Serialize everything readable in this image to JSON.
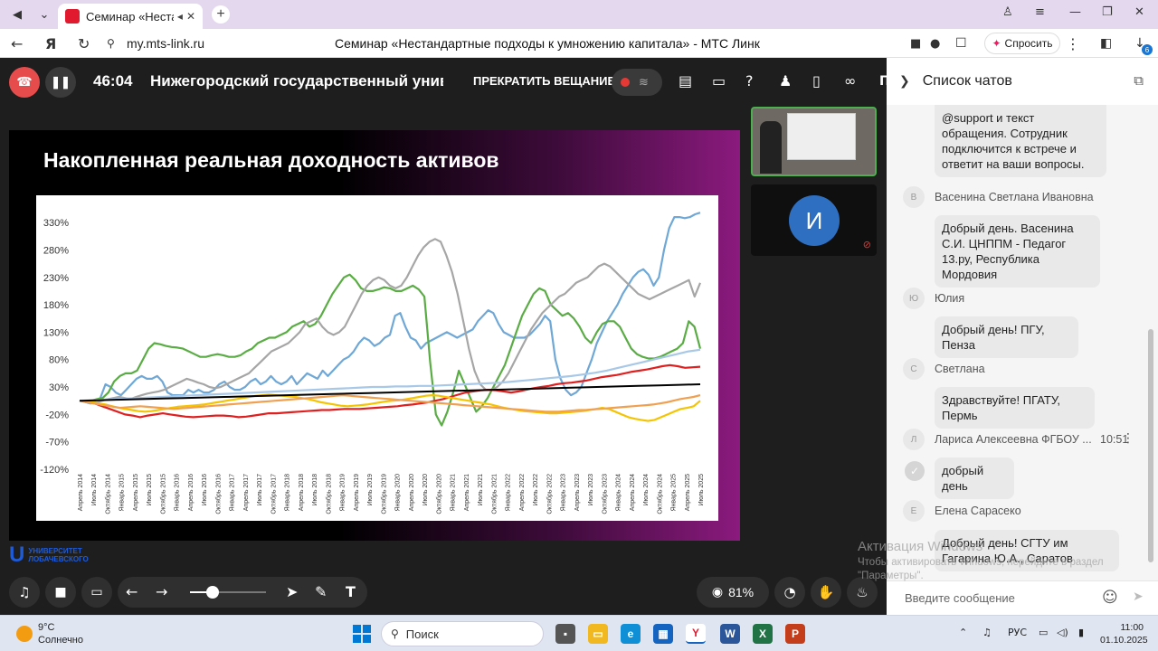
{
  "browser": {
    "tab_title": "Семинар «Нестанда",
    "address": "my.mts-link.ru",
    "page_title": "Семинар «Нестандартные подходы к умножению капитала» - МТС Линк",
    "ask_label": "Спросить",
    "extension_badge": "6"
  },
  "meeting": {
    "timer": "46:04",
    "org_name": "Нижегородский государственный униве",
    "stop_broadcast": "ПРЕКРАТИТЬ ВЕЩАНИЕ",
    "cut_label": "П",
    "participant_initial": "И",
    "views_percent": "81%"
  },
  "slide": {
    "title": "Накопленная реальная доходность активов",
    "logo_line1": "УНИВЕРСИТЕТ",
    "logo_line2": "ЛОБАЧЕВСКОГО"
  },
  "chart_data": {
    "type": "line",
    "title": "",
    "xlabel": "",
    "ylabel": "",
    "ylim": [
      -120,
      350
    ],
    "yticks": [
      330,
      280,
      230,
      180,
      130,
      80,
      30,
      -20,
      -70,
      -120
    ],
    "ytick_labels": [
      "330%",
      "280%",
      "230%",
      "180%",
      "130%",
      "80%",
      "30%",
      "-20%",
      "-70%",
      "-120%"
    ],
    "x_labels": [
      "Апрель 2014",
      "Июль 2014",
      "Октябрь 2014",
      "Январь 2015",
      "Апрель 2015",
      "Июль 2015",
      "Октябрь 2015",
      "Январь 2016",
      "Апрель 2016",
      "Июль 2016",
      "Октябрь 2016",
      "Январь 2017",
      "Апрель 2017",
      "Июль 2017",
      "Октябрь 2017",
      "Январь 2018",
      "Апрель 2018",
      "Июль 2018",
      "Октябрь 2018",
      "Январь 2019",
      "Апрель 2019",
      "Июль 2019",
      "Октябрь 2019",
      "Январь 2020",
      "Апрель 2020",
      "Июль 2020",
      "Октябрь 2020",
      "Январь 2021",
      "Апрель 2021",
      "Июль 2021",
      "Октябрь 2021",
      "Январь 2022",
      "Апрель 2022",
      "Июль 2022",
      "Октябрь 2022",
      "Январь 2023",
      "Апрель 2023",
      "Июль 2023",
      "Октябрь 2023",
      "Январь 2024",
      "Апрель 2024",
      "Июль 2024",
      "Октябрь 2024",
      "Январь 2025",
      "Апрель 2025",
      "Июль 2025"
    ],
    "grid": false,
    "legend": "none",
    "series": [
      {
        "color": "#6fa8d6",
        "values": [
          5,
          3,
          0,
          5,
          10,
          35,
          30,
          20,
          15,
          25,
          35,
          45,
          50,
          45,
          45,
          50,
          40,
          20,
          15,
          15,
          15,
          25,
          20,
          25,
          20,
          20,
          25,
          35,
          40,
          30,
          25,
          25,
          30,
          40,
          45,
          35,
          40,
          50,
          40,
          35,
          40,
          50,
          35,
          45,
          55,
          50,
          45,
          60,
          50,
          60,
          70,
          80,
          85,
          95,
          110,
          120,
          115,
          105,
          110,
          120,
          125,
          160,
          165,
          140,
          120,
          115,
          100,
          110,
          115,
          120,
          125,
          130,
          125,
          120,
          125,
          130,
          135,
          150,
          160,
          170,
          165,
          145,
          130,
          125,
          120,
          120,
          120,
          125,
          135,
          145,
          160,
          150,
          80,
          45,
          25,
          15,
          20,
          30,
          55,
          80,
          110,
          130,
          150,
          165,
          180,
          200,
          215,
          230,
          240,
          245,
          235,
          215,
          230,
          280,
          320,
          340,
          340,
          338,
          340,
          345,
          348
        ]
      },
      {
        "color": "#5aac44",
        "values": [
          5,
          5,
          5,
          8,
          10,
          20,
          40,
          50,
          55,
          55,
          60,
          80,
          100,
          110,
          108,
          105,
          103,
          102,
          100,
          95,
          90,
          85,
          85,
          88,
          90,
          88,
          85,
          85,
          88,
          95,
          100,
          110,
          115,
          120,
          120,
          125,
          130,
          140,
          145,
          150,
          140,
          145,
          160,
          180,
          200,
          215,
          230,
          235,
          225,
          210,
          205,
          205,
          208,
          212,
          210,
          205,
          205,
          210,
          215,
          208,
          195,
          75,
          -20,
          -40,
          -15,
          20,
          60,
          35,
          10,
          -15,
          -5,
          10,
          30,
          50,
          70,
          100,
          130,
          160,
          180,
          200,
          210,
          205,
          180,
          170,
          160,
          165,
          155,
          140,
          120,
          110,
          130,
          145,
          150,
          150,
          140,
          120,
          100,
          90,
          85,
          82,
          82,
          85,
          90,
          95,
          100,
          110,
          150,
          140,
          100
        ]
      },
      {
        "color": "#a6a6a6",
        "values": [
          5,
          3,
          0,
          2,
          5,
          8,
          10,
          12,
          10,
          8,
          12,
          15,
          18,
          20,
          22,
          25,
          30,
          35,
          40,
          45,
          42,
          38,
          35,
          30,
          28,
          30,
          35,
          40,
          45,
          50,
          55,
          65,
          75,
          85,
          95,
          100,
          105,
          110,
          120,
          130,
          145,
          150,
          155,
          140,
          130,
          125,
          130,
          140,
          160,
          180,
          200,
          215,
          225,
          230,
          225,
          215,
          210,
          215,
          230,
          250,
          270,
          285,
          295,
          300,
          295,
          270,
          240,
          200,
          150,
          100,
          60,
          35,
          25,
          25,
          30,
          40,
          55,
          75,
          95,
          115,
          135,
          150,
          165,
          175,
          185,
          195,
          200,
          210,
          220,
          225,
          230,
          240,
          250,
          255,
          250,
          240,
          230,
          220,
          210,
          200,
          195,
          190,
          195,
          200,
          205,
          210,
          215,
          220,
          225,
          195,
          220
        ]
      },
      {
        "color": "#e02020",
        "values": [
          5,
          3,
          0,
          -5,
          -10,
          -15,
          -20,
          -22,
          -25,
          -22,
          -20,
          -18,
          -20,
          -22,
          -24,
          -25,
          -24,
          -23,
          -22,
          -22,
          -23,
          -25,
          -24,
          -22,
          -20,
          -18,
          -18,
          -17,
          -16,
          -15,
          -14,
          -13,
          -12,
          -12,
          -11,
          -10,
          -10,
          -10,
          -9,
          -8,
          -7,
          -6,
          -5,
          -3,
          -2,
          0,
          2,
          5,
          8,
          12,
          16,
          20,
          22,
          24,
          25,
          24,
          22,
          20,
          22,
          25,
          28,
          30,
          32,
          35,
          37,
          38,
          40,
          42,
          45,
          48,
          50,
          52,
          55,
          58,
          60,
          62,
          65,
          68,
          70,
          68,
          65,
          66,
          67
        ]
      },
      {
        "color": "#f5c400",
        "values": [
          5,
          4,
          2,
          0,
          -2,
          -5,
          -8,
          -10,
          -12,
          -14,
          -15,
          -14,
          -12,
          -10,
          -8,
          -6,
          -5,
          -4,
          -3,
          -2,
          0,
          2,
          4,
          6,
          8,
          10,
          12,
          14,
          15,
          16,
          15,
          14,
          13,
          12,
          10,
          8,
          5,
          2,
          0,
          -2,
          -4,
          -5,
          -4,
          -3,
          -2,
          0,
          2,
          4,
          5,
          6,
          8,
          10,
          12,
          14,
          15,
          14,
          12,
          10,
          8,
          6,
          4,
          2,
          0,
          -2,
          -5,
          -8,
          -10,
          -12,
          -14,
          -15,
          -16,
          -17,
          -18,
          -18,
          -17,
          -16,
          -15,
          -14,
          -12,
          -10,
          -8,
          -10,
          -15,
          -20,
          -25,
          -28,
          -30,
          -32,
          -30,
          -25,
          -20,
          -15,
          -10,
          -8,
          -5,
          5
        ]
      },
      {
        "color": "#f0a050",
        "values": [
          5,
          3,
          0,
          -2,
          -4,
          -6,
          -8,
          -7,
          -6,
          -5,
          -6,
          -7,
          -8,
          -9,
          -10,
          -9,
          -8,
          -7,
          -6,
          -5,
          -4,
          -3,
          -2,
          -1,
          0,
          1,
          2,
          3,
          4,
          5,
          6,
          7,
          8,
          9,
          10,
          11,
          12,
          13,
          14,
          15,
          14,
          13,
          12,
          11,
          10,
          9,
          8,
          7,
          6,
          5,
          4,
          3,
          2,
          1,
          0,
          -1,
          -2,
          -3,
          -4,
          -5,
          -6,
          -7,
          -8,
          -9,
          -10,
          -11,
          -12,
          -13,
          -14,
          -15,
          -15,
          -15,
          -14,
          -13,
          -12,
          -12,
          -11,
          -10,
          -9,
          -8,
          -7,
          -6,
          -5,
          -4,
          -3,
          -2,
          0,
          2,
          5,
          8,
          10,
          12,
          15
        ]
      },
      {
        "color": "#a8c8e8",
        "values": [
          5,
          6,
          7,
          8,
          9,
          10,
          11,
          12,
          13,
          14,
          15,
          16,
          17,
          18,
          19,
          20,
          21,
          22,
          23,
          24,
          25,
          26,
          27,
          28,
          29,
          30,
          30,
          31,
          31,
          32,
          32,
          33,
          34,
          35,
          36,
          37,
          38,
          40,
          42,
          44,
          46,
          48,
          50,
          53,
          56,
          60,
          65,
          70,
          75,
          80,
          85,
          90,
          95,
          98
        ]
      },
      {
        "color": "#000000",
        "values": [
          5,
          6,
          7,
          8,
          9,
          10,
          11,
          12,
          13,
          14,
          15,
          16,
          17,
          18,
          19,
          20,
          21,
          22,
          23,
          24,
          25,
          26,
          27,
          28,
          29,
          30,
          31,
          32,
          33,
          34,
          35
        ]
      }
    ]
  },
  "chat": {
    "header": "Список чатов",
    "partial_message": "@support и текст обращения. Сотрудник подключится к встрече и ответит на ваши вопросы.",
    "messages": [
      {
        "initial": "В",
        "name": "Васенина Светлана Ивановна",
        "text": "Добрый день. Васенина С.И. ЦНППМ - Педагог 13.ру, Республика Мордовия"
      },
      {
        "initial": "Ю",
        "name": "Юлия",
        "text": "Добрый день! ПГУ, Пенза"
      },
      {
        "initial": "С",
        "name": "Светлана",
        "text": "Здравствуйте! ПГАТУ, Пермь"
      },
      {
        "initial": "Л",
        "name": "Лариса Алексеевна ФГБОУ ...",
        "time": "10:51",
        "text": "добрый день"
      },
      {
        "initial": "Е",
        "name": "Елена Сарасеко",
        "text": "Добрый день! СГТУ им Гагарина Ю.А., Саратов"
      }
    ],
    "input_placeholder": "Введите сообщение"
  },
  "watermark": {
    "line1": "Активация Windows",
    "line2": "Чтобы активировать Windows, перейдите в раздел \"Параметры\"."
  },
  "taskbar": {
    "temperature": "9°C",
    "weather": "Солнечно",
    "search_label": "Поиск",
    "language": "РУС",
    "time": "11:00",
    "date": "01.10.2025"
  }
}
